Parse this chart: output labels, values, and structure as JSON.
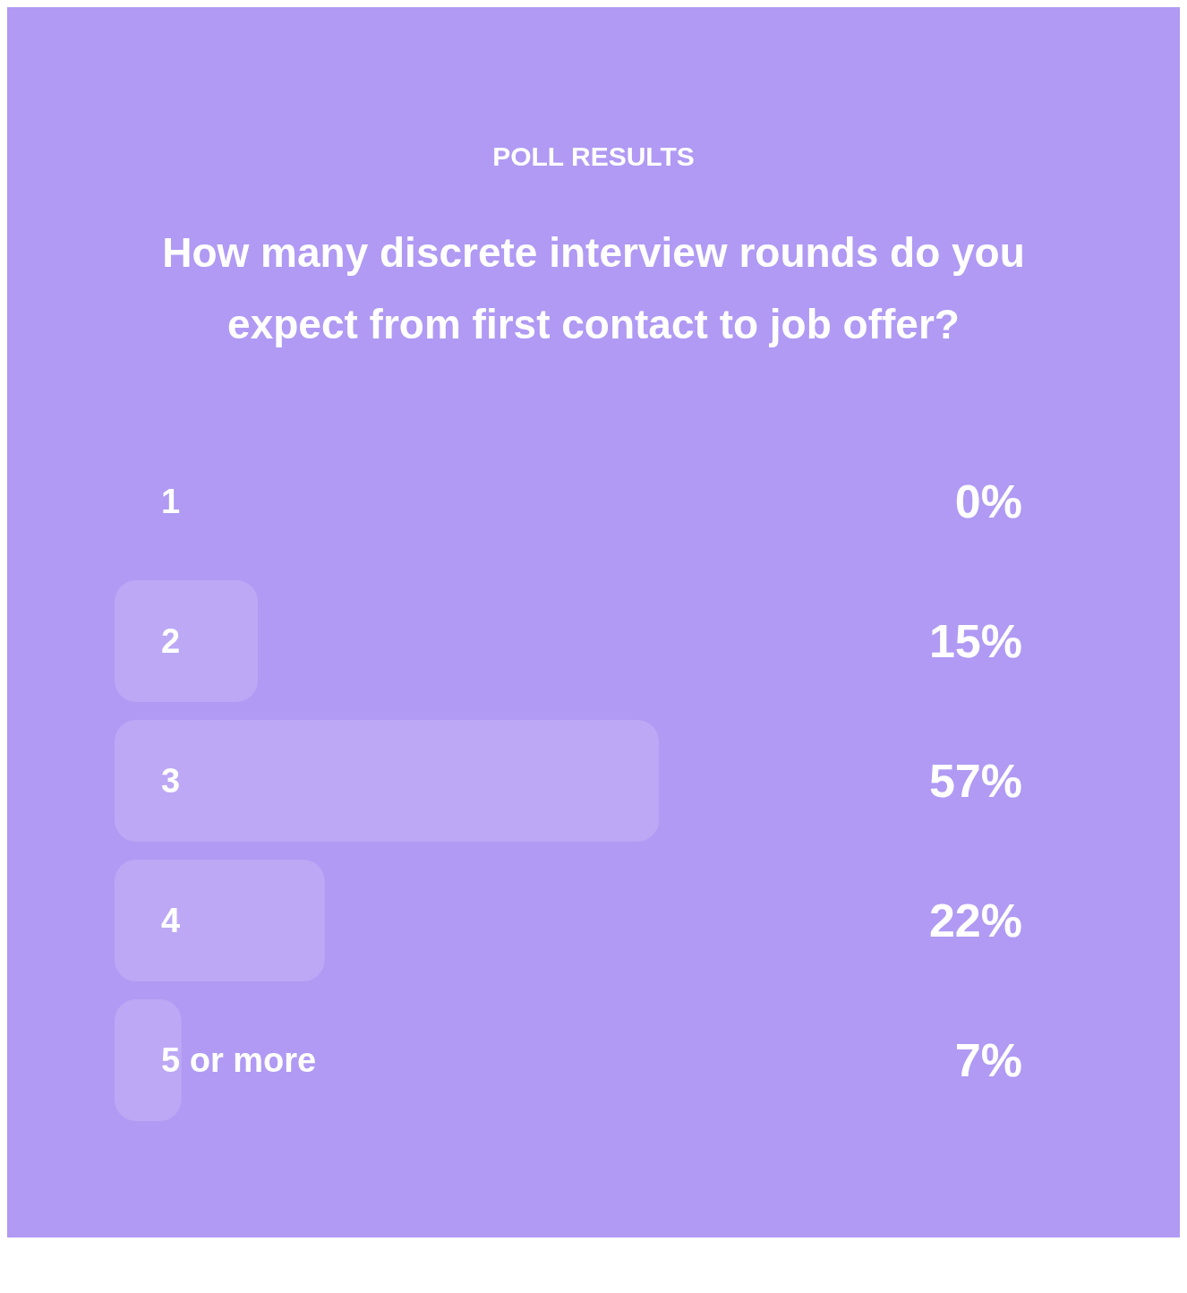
{
  "chart_data": {
    "type": "bar",
    "orientation": "horizontal",
    "subtitle": "POLL RESULTS",
    "title": "How many discrete interview rounds do you expect from first contact to job offer?",
    "categories": [
      "1",
      "2",
      "3",
      "4",
      "5 or more"
    ],
    "values": [
      0,
      15,
      57,
      22,
      7
    ],
    "value_labels": [
      "0%",
      "15%",
      "57%",
      "22%",
      "7%"
    ],
    "color": "#bca8f5",
    "tick_labels": "y"
  }
}
